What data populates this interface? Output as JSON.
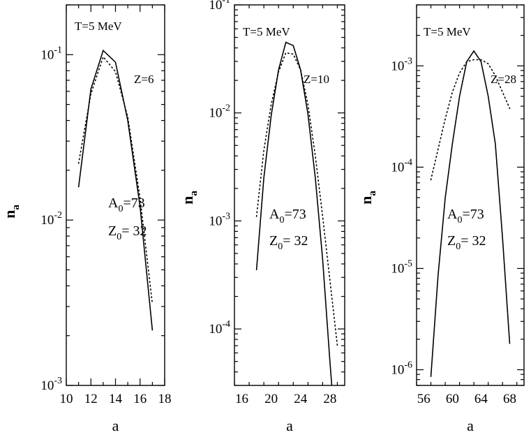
{
  "chart_data": [
    {
      "type": "line",
      "panel": "left",
      "xlabel": "a",
      "ylabel": "n_a",
      "xlim": [
        10,
        18
      ],
      "ylim": [
        0.001,
        0.2
      ],
      "yscale": "log",
      "xticks": [
        10,
        12,
        14,
        16,
        18
      ],
      "yticks": [
        {
          "base": "10",
          "exp": "-1",
          "value": 0.1
        },
        {
          "base": "10",
          "exp": "-2",
          "value": 0.01
        },
        {
          "base": "10",
          "exp": "-3",
          "value": 0.001
        }
      ],
      "annotations": {
        "temperature": "T=5 MeV",
        "charge": "Z=6",
        "a0_base": "A",
        "a0_sub": "0",
        "a0_val": "=73",
        "z0_base": "Z",
        "z0_sub": "0",
        "z0_val": "= 32"
      },
      "series": [
        {
          "style": "solid",
          "x": [
            11,
            12,
            13,
            14,
            15,
            16,
            17
          ],
          "y": [
            0.0158,
            0.062,
            0.106,
            0.09,
            0.04,
            0.012,
            0.00215
          ]
        },
        {
          "style": "dotted",
          "x": [
            11,
            12,
            13,
            14,
            15,
            16,
            17
          ],
          "y": [
            0.022,
            0.058,
            0.097,
            0.079,
            0.042,
            0.0135,
            0.0031
          ]
        }
      ]
    },
    {
      "type": "line",
      "panel": "middle",
      "xlabel": "a",
      "ylabel": "n_a",
      "xlim": [
        15,
        30
      ],
      "ylim": [
        3e-05,
        0.1
      ],
      "yscale": "log",
      "xticks": [
        16,
        20,
        24,
        28
      ],
      "yticks": [
        {
          "base": "10",
          "exp": "-1",
          "value": 0.1
        },
        {
          "base": "10",
          "exp": "-2",
          "value": 0.01
        },
        {
          "base": "10",
          "exp": "-3",
          "value": 0.001
        },
        {
          "base": "10",
          "exp": "-4",
          "value": 0.0001
        }
      ],
      "annotations": {
        "temperature": "T=5 MeV",
        "charge": "Z=10",
        "a0_base": "A",
        "a0_sub": "0",
        "a0_val": "=73",
        "z0_base": "Z",
        "z0_sub": "0",
        "z0_val": "= 32"
      },
      "series": [
        {
          "style": "solid",
          "x": [
            18,
            19,
            20,
            21,
            22,
            23,
            24,
            25,
            26,
            27,
            28,
            28.5
          ],
          "y": [
            0.00035,
            0.0025,
            0.0095,
            0.025,
            0.045,
            0.042,
            0.025,
            0.0098,
            0.0025,
            0.00044,
            4.9e-05,
            1.8e-05
          ]
        },
        {
          "style": "dotted",
          "x": [
            18,
            19,
            20,
            21,
            22,
            23,
            24,
            25,
            26,
            27,
            28,
            29
          ],
          "y": [
            0.0011,
            0.0045,
            0.012,
            0.024,
            0.036,
            0.035,
            0.025,
            0.012,
            0.004,
            0.0011,
            0.00028,
            7e-05
          ]
        }
      ]
    },
    {
      "type": "line",
      "panel": "right",
      "xlabel": "a",
      "ylabel": "n_a",
      "xlim": [
        55,
        70
      ],
      "ylim": [
        7e-07,
        0.004
      ],
      "yscale": "log",
      "xticks": [
        56,
        60,
        64,
        68
      ],
      "yticks": [
        {
          "base": "10",
          "exp": "-3",
          "value": 0.001
        },
        {
          "base": "10",
          "exp": "-4",
          "value": 0.0001
        },
        {
          "base": "10",
          "exp": "-5",
          "value": 1e-05
        },
        {
          "base": "10",
          "exp": "-6",
          "value": 1e-06
        }
      ],
      "annotations": {
        "temperature": "T=5 MeV",
        "charge": "Z=28",
        "a0_base": "A",
        "a0_sub": "0",
        "a0_val": "=73",
        "z0_base": "Z",
        "z0_sub": "0",
        "z0_val": "= 32"
      },
      "series": [
        {
          "style": "solid",
          "x": [
            57,
            58,
            59,
            60,
            61,
            62,
            63,
            64,
            65,
            66,
            67,
            68
          ],
          "y": [
            8.5e-07,
            8.5e-06,
            5e-05,
            0.00017,
            0.0005,
            0.0011,
            0.0014,
            0.0011,
            0.0005,
            0.00017,
            2e-05,
            1.8e-06
          ]
        },
        {
          "style": "dotted",
          "x": [
            57,
            58,
            59,
            60,
            61,
            62,
            63,
            64,
            65,
            66,
            67,
            68
          ],
          "y": [
            7.5e-05,
            0.00015,
            0.0003,
            0.00055,
            0.00085,
            0.0011,
            0.00115,
            0.00115,
            0.00105,
            0.0008,
            0.00055,
            0.00038
          ]
        }
      ]
    }
  ]
}
